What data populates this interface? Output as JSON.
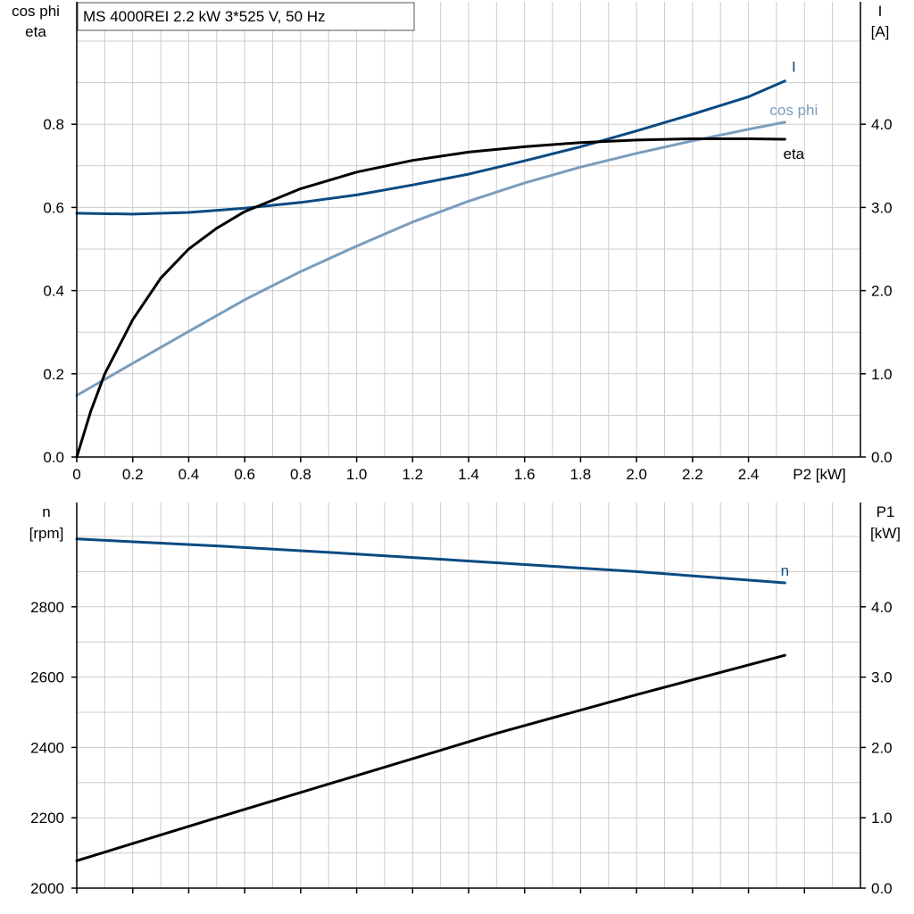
{
  "title": "MS 4000REI   2.2 kW   3*525 V, 50 Hz",
  "colors": {
    "dark_blue": "#0a4a82",
    "light_blue": "#7a9dbd",
    "black": "#000000",
    "grid": "#cccccc"
  },
  "chart_data": [
    {
      "type": "line",
      "name": "top",
      "x_axis": {
        "label": "P2 [kW]",
        "range": [
          0,
          2.8
        ],
        "ticks": [
          "0",
          "0.2",
          "0.4",
          "0.6",
          "0.8",
          "1.0",
          "1.2",
          "1.4",
          "1.6",
          "1.8",
          "2.0",
          "2.2",
          "2.4"
        ]
      },
      "y_left": {
        "label_line1": "cos phi",
        "label_line2": "eta",
        "range": [
          0,
          1.0
        ],
        "ticks": [
          "0.0",
          "0.2",
          "0.4",
          "0.6",
          "0.8"
        ]
      },
      "y_right": {
        "label_line1": "I",
        "label_line2": "[A]",
        "range": [
          0,
          5.0
        ],
        "ticks": [
          "0.0",
          "1.0",
          "2.0",
          "3.0",
          "4.0"
        ]
      },
      "grid": true,
      "series": [
        {
          "name": "I",
          "axis": "right",
          "color": "#0a4a82",
          "x": [
            0,
            0.2,
            0.4,
            0.6,
            0.8,
            1.0,
            1.2,
            1.4,
            1.6,
            1.8,
            2.0,
            2.2,
            2.4,
            2.53
          ],
          "y": [
            2.93,
            2.92,
            2.94,
            2.99,
            3.06,
            3.15,
            3.27,
            3.4,
            3.56,
            3.73,
            3.92,
            4.12,
            4.33,
            4.52
          ]
        },
        {
          "name": "cos phi",
          "axis": "left",
          "color": "#7a9dbd",
          "x": [
            0,
            0.2,
            0.4,
            0.6,
            0.8,
            1.0,
            1.2,
            1.4,
            1.6,
            1.8,
            2.0,
            2.2,
            2.4,
            2.53
          ],
          "y": [
            0.148,
            0.225,
            0.302,
            0.378,
            0.446,
            0.507,
            0.565,
            0.615,
            0.659,
            0.697,
            0.73,
            0.76,
            0.788,
            0.805
          ]
        },
        {
          "name": "eta",
          "axis": "left",
          "color": "#000000",
          "x": [
            0,
            0.05,
            0.1,
            0.2,
            0.3,
            0.4,
            0.5,
            0.6,
            0.8,
            1.0,
            1.2,
            1.4,
            1.6,
            1.8,
            2.0,
            2.2,
            2.4,
            2.53
          ],
          "y": [
            0.0,
            0.11,
            0.2,
            0.33,
            0.43,
            0.5,
            0.55,
            0.59,
            0.645,
            0.685,
            0.713,
            0.733,
            0.746,
            0.756,
            0.762,
            0.765,
            0.765,
            0.764
          ]
        }
      ]
    },
    {
      "type": "line",
      "name": "bottom",
      "x_axis": {
        "range": [
          0,
          2.8
        ]
      },
      "y_left": {
        "label_line1": "n",
        "label_line2": "[rpm]",
        "range": [
          2000,
          3000
        ],
        "ticks": [
          "2000",
          "2200",
          "2400",
          "2600",
          "2800"
        ]
      },
      "y_right": {
        "label_line1": "P1",
        "label_line2": "[kW]",
        "range": [
          0,
          5.0
        ],
        "ticks": [
          "0.0",
          "1.0",
          "2.0",
          "3.0",
          "4.0"
        ]
      },
      "grid": true,
      "series": [
        {
          "name": "n",
          "axis": "left",
          "color": "#0a4a82",
          "x": [
            0,
            0.5,
            1.0,
            1.5,
            2.0,
            2.53
          ],
          "y": [
            2993,
            2973,
            2950,
            2925,
            2900,
            2868
          ]
        },
        {
          "name": "",
          "axis": "right",
          "color": "#000000",
          "x": [
            0,
            0.5,
            1.0,
            1.5,
            2.0,
            2.53
          ],
          "y": [
            0.39,
            1.0,
            1.6,
            2.2,
            2.75,
            3.31
          ]
        }
      ]
    }
  ]
}
